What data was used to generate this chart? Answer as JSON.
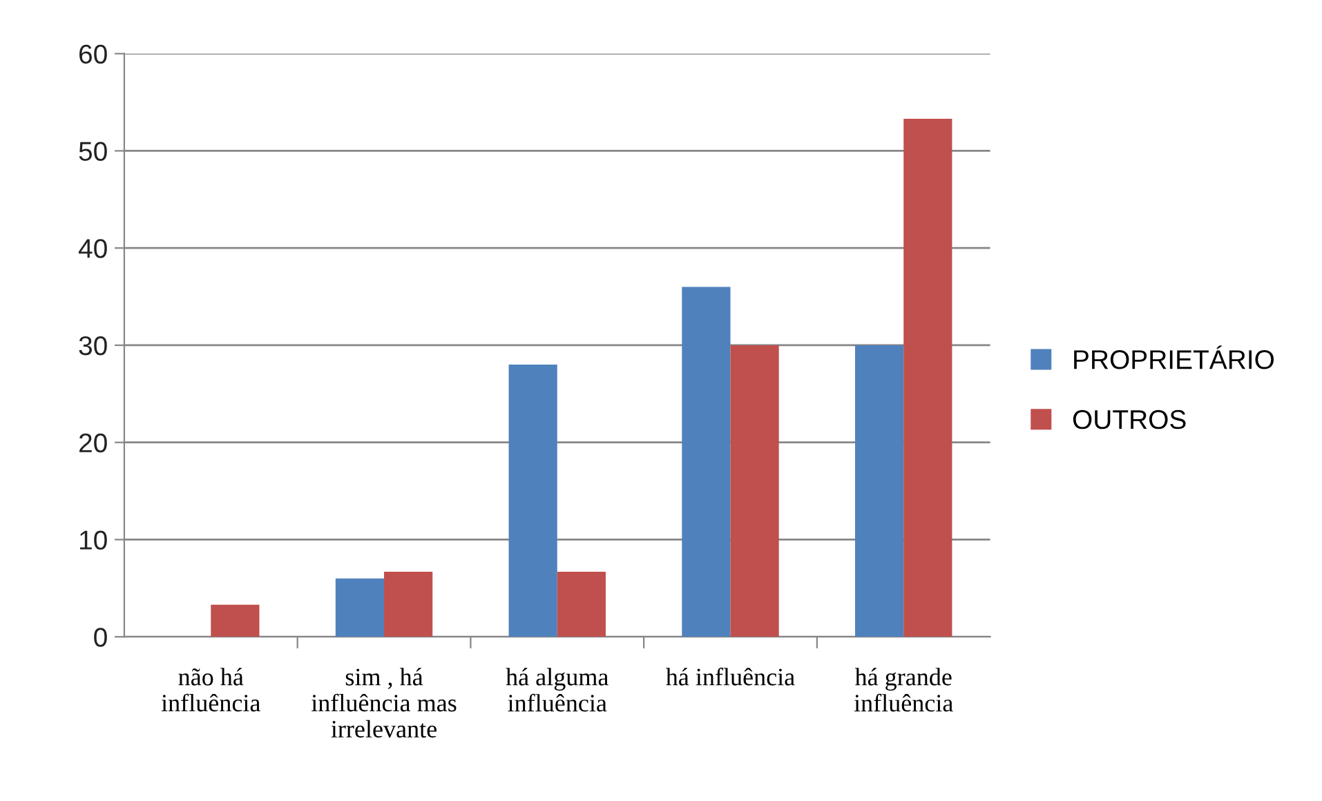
{
  "chart_data": {
    "type": "bar",
    "categories": [
      "não há\ninfluência",
      "sim , há\ninfluência mas\nirrelevante",
      "há alguma\ninfluência",
      "há influência",
      "há grande\ninfluência"
    ],
    "series": [
      {
        "name": "PROPRIETÁRIO",
        "color": "#4f81bd",
        "values": [
          0,
          6,
          28,
          36,
          30
        ]
      },
      {
        "name": "OUTROS",
        "color": "#c0504d",
        "values": [
          3.3,
          6.7,
          6.7,
          30,
          53.3
        ]
      }
    ],
    "ylim": [
      0,
      60
    ],
    "yticks": [
      0,
      10,
      20,
      30,
      40,
      50,
      60
    ],
    "grid": "y",
    "legend": "right"
  }
}
